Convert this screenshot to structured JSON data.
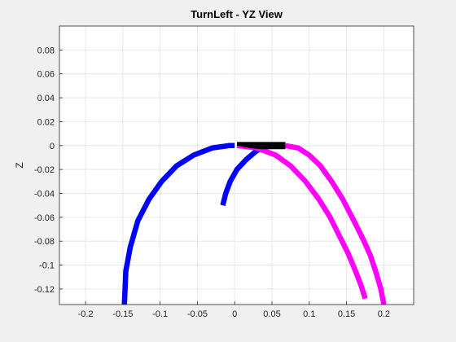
{
  "chart_data": {
    "type": "line",
    "title": "TurnLeft - YZ View",
    "xlabel": "",
    "ylabel": "Z",
    "xlim": [
      -0.235,
      0.24
    ],
    "ylim": [
      -0.133,
      0.1
    ],
    "grid": true,
    "x_ticks": [
      -0.2,
      -0.15,
      -0.1,
      -0.05,
      0,
      0.05,
      0.1,
      0.15,
      0.2
    ],
    "x_tick_labels": [
      "-0.2",
      "-0.15",
      "-0.1",
      "-0.05",
      "0",
      "0.05",
      "0.1",
      "0.15",
      "0.2"
    ],
    "y_ticks": [
      0.08,
      0.06,
      0.04,
      0.02,
      0,
      -0.02,
      -0.04,
      -0.06,
      -0.08,
      -0.1,
      -0.12
    ],
    "y_tick_labels": [
      "0.08",
      "0.06",
      "0.04",
      "0.02",
      "0",
      "-0.02",
      "-0.04",
      "-0.06",
      "-0.08",
      "-0.1",
      "-0.12"
    ],
    "colors": {
      "blue": "#0000ff",
      "magenta": "#ff00ff",
      "black": "#000000",
      "plot_bg": "#ffffff",
      "figure_bg": "#f0f0f0",
      "grid": "#e6e6e6",
      "axis": "#262626"
    },
    "series": [
      {
        "color": "blue",
        "width": 6.5,
        "x": [
          -0.148,
          -0.147,
          -0.146,
          -0.14,
          -0.13,
          -0.115,
          -0.098,
          -0.078,
          -0.055,
          -0.03,
          -0.007,
          0.0
        ],
        "y": [
          -0.133,
          -0.12,
          -0.105,
          -0.085,
          -0.063,
          -0.045,
          -0.03,
          -0.017,
          -0.008,
          -0.002,
          0.0,
          0.0
        ]
      },
      {
        "color": "blue",
        "width": 6.5,
        "x": [
          -0.016,
          -0.012,
          -0.006,
          0.003,
          0.015,
          0.028,
          0.036
        ],
        "y": [
          -0.05,
          -0.04,
          -0.03,
          -0.02,
          -0.012,
          -0.005,
          -0.002
        ]
      },
      {
        "color": "magenta",
        "width": 6.5,
        "x": [
          0.003,
          0.03,
          0.055,
          0.075,
          0.095,
          0.113,
          0.128,
          0.14,
          0.152,
          0.162,
          0.17,
          0.175
        ],
        "y": [
          0.0,
          -0.002,
          -0.008,
          -0.017,
          -0.03,
          -0.045,
          -0.06,
          -0.075,
          -0.09,
          -0.105,
          -0.118,
          -0.128
        ]
      },
      {
        "color": "magenta",
        "width": 6.5,
        "x": [
          0.068,
          0.085,
          0.1,
          0.115,
          0.13,
          0.145,
          0.16,
          0.172,
          0.182,
          0.19,
          0.196,
          0.2
        ],
        "y": [
          0.0,
          -0.002,
          -0.008,
          -0.017,
          -0.03,
          -0.045,
          -0.063,
          -0.078,
          -0.092,
          -0.107,
          -0.12,
          -0.133
        ]
      }
    ],
    "patches": [
      {
        "color": "black",
        "x": [
          0.003,
          0.068,
          0.068,
          0.036,
          0.02,
          0.003
        ],
        "y": [
          0.003,
          0.003,
          -0.003,
          -0.003,
          -0.002,
          0.0
        ]
      }
    ]
  }
}
